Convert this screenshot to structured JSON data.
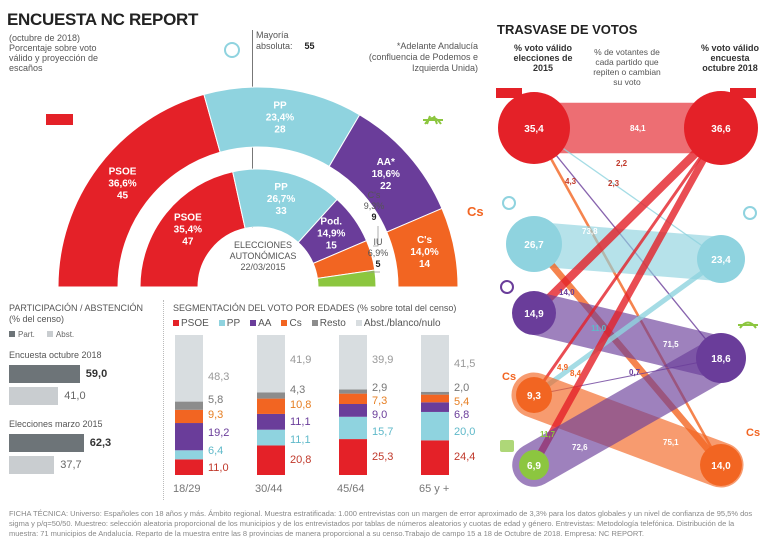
{
  "header": {
    "title": "ENCUESTA NC REPORT",
    "subtitle_date": "(octubre de 2018)",
    "subtitle_desc": "Porcentaje sobre voto válido y proyección de escaños",
    "majority_label": "Mayoría absoluta:",
    "majority_value": "55",
    "note": "*Adelante Andalucía (confluencia de Podemos e Izquierda Unida)",
    "elections_label": "ELECCIONES AUTONÓMICAS 22/03/2015"
  },
  "colors": {
    "psoe": "#e42128",
    "pp": "#8fd3df",
    "aa": "#6a3d9a",
    "podemos": "#6a3d9a",
    "cs": "#f26522",
    "iu": "#8cc63f",
    "resto": "#8c8c8c",
    "abst": "#d8dde0",
    "part_dark": "#6d7478",
    "part_light": "#c9cdd0"
  },
  "chart_data": [
    {
      "type": "pie",
      "title": "Encuesta NC Report octubre 2018 (hemiciclo)",
      "categories": [
        "PSOE",
        "PP",
        "AA*",
        "C's"
      ],
      "values_pct": [
        36.6,
        23.4,
        18.6,
        14.0
      ],
      "seats": [
        45,
        28,
        22,
        14
      ],
      "labels": [
        "PSOE\n36,6%\n45",
        "PP\n23,4%\n28",
        "AA*\n18,6%\n22",
        "C's\n14,0%\n14"
      ]
    },
    {
      "type": "pie",
      "title": "Elecciones autonómicas 22/03/2015 (hemiciclo)",
      "categories": [
        "PSOE",
        "PP",
        "Pod.",
        "C's",
        "IU"
      ],
      "values_pct": [
        35.4,
        26.7,
        14.9,
        9.3,
        6.9
      ],
      "seats": [
        47,
        33,
        15,
        9,
        5
      ]
    },
    {
      "type": "bar",
      "title": "PARTICIPACIÓN / ABSTENCIÓN",
      "subtitle": "(% del censo)",
      "legend": [
        "Part.",
        "Abst."
      ],
      "categories": [
        "Encuesta octubre 2018",
        "Elecciones marzo 2015"
      ],
      "series": [
        {
          "name": "Part.",
          "values": [
            59.0,
            62.3
          ],
          "labels": [
            "59,0",
            "62,3"
          ]
        },
        {
          "name": "Abst.",
          "values": [
            41.0,
            37.7
          ],
          "labels": [
            "41,0",
            "37,7"
          ]
        }
      ]
    },
    {
      "type": "bar",
      "stacked": true,
      "title": "SEGMENTACIÓN DEL VOTO POR EDADES (% sobre total del censo)",
      "legend": [
        "PSOE",
        "PP",
        "AA",
        "Cs",
        "Resto",
        "Abst./blanco/nulo"
      ],
      "categories": [
        "18/29",
        "30/44",
        "45/64",
        "65 y +"
      ],
      "series": [
        {
          "name": "PSOE",
          "values": [
            11.0,
            20.8,
            25.3,
            24.4
          ],
          "labels": [
            "11,0",
            "20,8",
            "25,3",
            "24,4"
          ]
        },
        {
          "name": "PP",
          "values": [
            6.4,
            11.1,
            15.7,
            20.0
          ],
          "labels": [
            "6,4",
            "11,1",
            "15,7",
            "20,0"
          ]
        },
        {
          "name": "AA",
          "values": [
            19.2,
            11.1,
            9.0,
            6.8
          ],
          "labels": [
            "19,2",
            "11,1",
            "9,0",
            "6,8"
          ]
        },
        {
          "name": "Cs",
          "values": [
            9.3,
            10.8,
            7.3,
            5.4
          ],
          "labels": [
            "9,3",
            "10,8",
            "7,3",
            "5,4"
          ]
        },
        {
          "name": "Resto",
          "values": [
            5.8,
            4.3,
            2.9,
            2.0
          ],
          "labels": [
            "5,8",
            "4,3",
            "2,9",
            "2,0"
          ]
        },
        {
          "name": "Abst./blanco/nulo",
          "values": [
            48.3,
            41.9,
            39.9,
            41.5
          ],
          "labels": [
            "48,3",
            "41,9",
            "39,9",
            "41,5"
          ]
        }
      ]
    },
    {
      "type": "table",
      "title": "TRASVASE DE VOTOS",
      "col_left": "% voto válido elecciones de 2015",
      "col_mid": "% de votantes de cada partido que repiten o cambian su voto",
      "col_right": "% voto válido encuesta octubre 2018",
      "left_nodes": [
        {
          "party": "PSOE",
          "value": "35,4"
        },
        {
          "party": "PP",
          "value": "26,7"
        },
        {
          "party": "Podemos",
          "value": "14,9"
        },
        {
          "party": "Cs",
          "value": "9,3"
        },
        {
          "party": "IU",
          "value": "6,9"
        }
      ],
      "right_nodes": [
        {
          "party": "PSOE",
          "value": "36,6"
        },
        {
          "party": "PP",
          "value": "23,4"
        },
        {
          "party": "AA",
          "value": "18,6"
        },
        {
          "party": "Cs",
          "value": "14,0"
        }
      ],
      "flows": [
        {
          "from": "PSOE",
          "to": "PSOE",
          "value": 84.1,
          "label": "84,1"
        },
        {
          "from": "PSOE",
          "to": "PP",
          "value": 2.2,
          "label": "2,2"
        },
        {
          "from": "PSOE",
          "to": "AA",
          "value": 2.3,
          "label": "2,3"
        },
        {
          "from": "PSOE",
          "to": "Cs",
          "value": 4.3,
          "label": "4,3"
        },
        {
          "from": "PP",
          "to": "PP",
          "value": 73.8,
          "label": "73,8"
        },
        {
          "from": "PP",
          "to": "Cs",
          "value": 11.0,
          "label": "11,0"
        },
        {
          "from": "Podemos",
          "to": "PSOE",
          "value": 14.0,
          "label": "14,0"
        },
        {
          "from": "Podemos",
          "to": "AA",
          "value": 71.5,
          "label": "71,5"
        },
        {
          "from": "Cs",
          "to": "PSOE",
          "value": 4.9,
          "label": "4,9"
        },
        {
          "from": "Cs",
          "to": "PP",
          "value": 8.4,
          "label": "8,4"
        },
        {
          "from": "Cs",
          "to": "AA",
          "value": 0.7,
          "label": "0,7"
        },
        {
          "from": "Cs",
          "to": "Cs",
          "value": 75.1,
          "label": "75,1"
        },
        {
          "from": "IU",
          "to": "PSOE",
          "value": 11.7,
          "label": "11,7"
        },
        {
          "from": "IU",
          "to": "AA",
          "value": 72.6,
          "label": "72,6"
        }
      ]
    }
  ],
  "participation": {
    "title": "PARTICIPACIÓN / ABSTENCIÓN",
    "subtitle": "(% del censo)",
    "legend_part": "Part.",
    "legend_abst": "Abst.",
    "groups": [
      {
        "label": "Encuesta octubre 2018",
        "part": "59,0",
        "abst": "41,0"
      },
      {
        "label": "Elecciones marzo 2015",
        "part": "62,3",
        "abst": "37,7"
      }
    ]
  },
  "segmentation": {
    "title": "SEGMENTACIÓN DEL VOTO POR EDADES (% sobre total del censo)",
    "legend": [
      "PSOE",
      "PP",
      "AA",
      "Cs",
      "Resto",
      "Abst./blanco/nulo"
    ]
  },
  "trasvase": {
    "title": "TRASVASE DE VOTOS",
    "col_left": "% voto válido elecciones de 2015",
    "col_mid": "% de votantes de cada partido que repiten o cambian su voto",
    "col_right": "% voto válido encuesta octubre 2018",
    "logo_psoe": "PSOE"
  },
  "footer": "FICHA TÉCNICA: Universo: Españoles con 18 años y más. Ámbito regional. Muestra estratificada: 1.000 entrevistas con un margen de error aproximado de 3,3% para los datos globales y un nivel de confianza de 95,5% dos sigma y p/q=50/50. Muestreo: selección aleatoria proporcional de los municipios y de los entrevistados por tablas de números aleatorios y cuotas de edad y género. Entrevistas: Metodología telefónica. Distribución de la muestra: 71 municipios de Andalucía. Reparto de la muestra entre las 8 provincias de manera proporcional a su censo.Trabajo de campo 15 a 18 de Octubre de 2018. Empresa: NC REPORT."
}
